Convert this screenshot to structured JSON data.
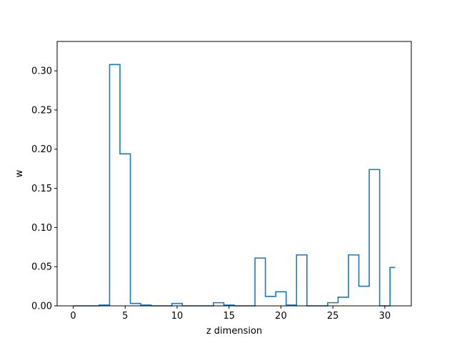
{
  "chart_data": {
    "type": "line",
    "drawstyle": "steps-mid",
    "xlabel": "z dimension",
    "ylabel": "w",
    "xlim": [
      -1.55,
      32.55
    ],
    "ylim": [
      0,
      0.3375
    ],
    "xticks": [
      0,
      5,
      10,
      15,
      20,
      25,
      30
    ],
    "xtick_labels": [
      "0",
      "5",
      "10",
      "15",
      "20",
      "25",
      "30"
    ],
    "yticks": [
      0.0,
      0.05,
      0.1,
      0.15,
      0.2,
      0.25,
      0.3
    ],
    "ytick_labels": [
      "0.00",
      "0.05",
      "0.10",
      "0.15",
      "0.20",
      "0.25",
      "0.30"
    ],
    "grid": false,
    "series": [
      {
        "color": "#1f77b4",
        "x": [
          0,
          1,
          2,
          3,
          4,
          5,
          6,
          7,
          8,
          9,
          10,
          11,
          12,
          13,
          14,
          15,
          16,
          17,
          18,
          19,
          20,
          21,
          22,
          23,
          24,
          25,
          26,
          27,
          28,
          29,
          30,
          31
        ],
        "y": [
          0.0,
          0.0,
          0.0,
          0.001,
          0.308,
          0.194,
          0.003,
          0.001,
          0.0,
          0.0,
          0.003,
          0.0,
          0.0,
          0.0,
          0.004,
          0.001,
          0.0,
          0.0,
          0.061,
          0.012,
          0.018,
          0.001,
          0.065,
          0.0,
          0.0,
          0.004,
          0.011,
          0.065,
          0.025,
          0.174,
          0.0,
          0.049
        ]
      }
    ]
  }
}
